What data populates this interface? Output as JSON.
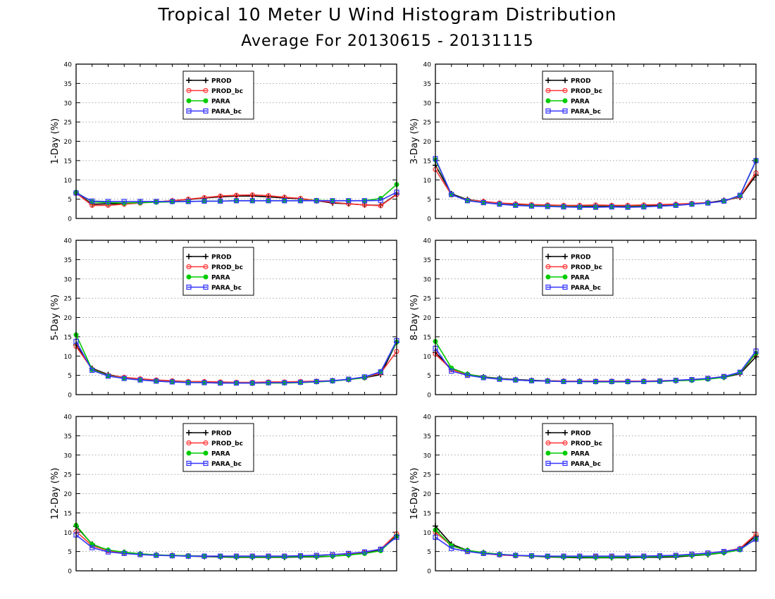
{
  "header": {
    "title": "Tropical 10 Meter U Wind Histogram Distribution",
    "subtitle": "Average For 20130615 - 20131115"
  },
  "colors": {
    "PROD": "#000000",
    "PROD_bc": "#ff3333",
    "PARA": "#00cc00",
    "PARA_bc": "#3333ff"
  },
  "chart_data": [
    {
      "type": "line",
      "ylabel": "1-Day (%)",
      "ylim": [
        0,
        40
      ],
      "yticks": [
        0,
        5,
        10,
        15,
        20,
        25,
        30,
        35,
        40
      ],
      "grid": true,
      "legend": "top-left",
      "series": [
        {
          "name": "PROD",
          "values": [
            6.6,
            3.7,
            3.8,
            3.8,
            4.1,
            4.3,
            4.6,
            4.9,
            5.3,
            5.6,
            5.8,
            5.8,
            5.6,
            5.3,
            5.1,
            4.6,
            4.0,
            3.8,
            3.5,
            3.4,
            6.3
          ]
        },
        {
          "name": "PROD_bc",
          "values": [
            6.6,
            3.4,
            3.4,
            3.7,
            4.0,
            4.3,
            4.6,
            5.0,
            5.4,
            5.8,
            6.0,
            6.1,
            5.9,
            5.5,
            5.2,
            4.6,
            4.2,
            3.8,
            3.5,
            3.3,
            6.2
          ]
        },
        {
          "name": "PARA",
          "values": [
            6.8,
            4.3,
            4.1,
            4.0,
            4.1,
            4.2,
            4.3,
            4.4,
            4.5,
            4.5,
            4.6,
            4.6,
            4.6,
            4.6,
            4.6,
            4.7,
            4.6,
            4.6,
            4.6,
            5.2,
            8.8
          ]
        },
        {
          "name": "PARA_bc",
          "values": [
            6.6,
            4.5,
            4.4,
            4.4,
            4.4,
            4.4,
            4.4,
            4.4,
            4.5,
            4.5,
            4.6,
            4.6,
            4.6,
            4.6,
            4.6,
            4.6,
            4.6,
            4.6,
            4.6,
            4.7,
            6.8
          ]
        }
      ]
    },
    {
      "type": "line",
      "ylabel": "3-Day (%)",
      "ylim": [
        0,
        40
      ],
      "yticks": [
        0,
        5,
        10,
        15,
        20,
        25,
        30,
        35,
        40
      ],
      "grid": true,
      "legend": "top-left",
      "series": [
        {
          "name": "PROD",
          "values": [
            13.8,
            6.4,
            4.9,
            4.4,
            3.9,
            3.6,
            3.4,
            3.3,
            3.2,
            3.2,
            3.2,
            3.2,
            3.2,
            3.3,
            3.4,
            3.6,
            3.8,
            4.1,
            4.7,
            5.5,
            11.2
          ]
        },
        {
          "name": "PROD_bc",
          "values": [
            12.7,
            6.1,
            4.8,
            4.4,
            4.0,
            3.8,
            3.6,
            3.5,
            3.4,
            3.4,
            3.5,
            3.4,
            3.4,
            3.5,
            3.6,
            3.7,
            3.9,
            4.1,
            4.5,
            5.7,
            11.8
          ]
        },
        {
          "name": "PARA",
          "values": [
            15.2,
            6.2,
            4.7,
            4.1,
            3.7,
            3.4,
            3.3,
            3.2,
            3.1,
            3.0,
            3.0,
            3.0,
            3.0,
            3.1,
            3.2,
            3.4,
            3.7,
            4.0,
            4.5,
            5.9,
            14.9
          ]
        },
        {
          "name": "PARA_bc",
          "values": [
            15.5,
            6.2,
            4.6,
            4.1,
            3.7,
            3.4,
            3.2,
            3.1,
            3.0,
            2.9,
            2.9,
            3.0,
            2.9,
            3.0,
            3.2,
            3.4,
            3.7,
            4.0,
            4.5,
            6.0,
            15.0
          ]
        }
      ]
    },
    {
      "type": "line",
      "ylabel": "5-Day (%)",
      "ylim": [
        0,
        40
      ],
      "yticks": [
        0,
        5,
        10,
        15,
        20,
        25,
        30,
        35,
        40
      ],
      "grid": true,
      "legend": "top-left",
      "series": [
        {
          "name": "PROD",
          "values": [
            12.9,
            6.8,
            5.2,
            4.4,
            4.0,
            3.7,
            3.5,
            3.3,
            3.2,
            3.1,
            3.1,
            3.0,
            3.1,
            3.1,
            3.2,
            3.4,
            3.6,
            3.9,
            4.4,
            5.2,
            13.6
          ]
        },
        {
          "name": "PROD_bc",
          "values": [
            12.5,
            6.6,
            5.0,
            4.5,
            4.1,
            3.8,
            3.6,
            3.4,
            3.4,
            3.3,
            3.2,
            3.2,
            3.3,
            3.3,
            3.4,
            3.5,
            3.6,
            3.9,
            4.4,
            5.6,
            11.2
          ]
        },
        {
          "name": "PARA",
          "values": [
            15.5,
            6.5,
            4.9,
            4.2,
            3.8,
            3.5,
            3.3,
            3.2,
            3.1,
            3.0,
            3.0,
            3.0,
            3.0,
            3.0,
            3.1,
            3.3,
            3.5,
            3.9,
            4.4,
            6.0,
            13.6
          ]
        },
        {
          "name": "PARA_bc",
          "values": [
            13.8,
            6.3,
            4.8,
            4.2,
            3.8,
            3.5,
            3.3,
            3.1,
            3.1,
            3.0,
            3.0,
            3.0,
            3.1,
            3.1,
            3.2,
            3.4,
            3.6,
            4.0,
            4.6,
            5.9,
            14.0
          ]
        }
      ]
    },
    {
      "type": "line",
      "ylabel": "8-Day (%)",
      "ylim": [
        0,
        40
      ],
      "yticks": [
        0,
        5,
        10,
        15,
        20,
        25,
        30,
        35,
        40
      ],
      "grid": true,
      "legend": "top-left",
      "series": [
        {
          "name": "PROD",
          "values": [
            11.0,
            6.6,
            5.3,
            4.6,
            4.2,
            3.9,
            3.7,
            3.6,
            3.5,
            3.5,
            3.4,
            3.4,
            3.4,
            3.5,
            3.5,
            3.6,
            3.8,
            4.1,
            4.5,
            5.4,
            9.8
          ]
        },
        {
          "name": "PROD_bc",
          "values": [
            10.5,
            6.5,
            5.2,
            4.5,
            4.1,
            3.8,
            3.6,
            3.6,
            3.5,
            3.5,
            3.5,
            3.5,
            3.5,
            3.5,
            3.6,
            3.7,
            3.9,
            4.2,
            4.7,
            5.6,
            10.6
          ]
        },
        {
          "name": "PARA",
          "values": [
            13.8,
            6.9,
            5.3,
            4.5,
            4.1,
            3.8,
            3.6,
            3.5,
            3.4,
            3.4,
            3.3,
            3.3,
            3.3,
            3.4,
            3.4,
            3.6,
            3.7,
            4.0,
            4.5,
            5.7,
            10.7
          ]
        },
        {
          "name": "PARA_bc",
          "values": [
            12.0,
            6.1,
            5.0,
            4.4,
            4.0,
            3.8,
            3.6,
            3.5,
            3.4,
            3.4,
            3.4,
            3.4,
            3.4,
            3.4,
            3.5,
            3.7,
            3.9,
            4.2,
            4.7,
            5.8,
            11.3
          ]
        }
      ]
    },
    {
      "type": "line",
      "ylabel": "12-Day (%)",
      "ylim": [
        0,
        40
      ],
      "yticks": [
        0,
        5,
        10,
        15,
        20,
        25,
        30,
        35,
        40
      ],
      "grid": true,
      "legend": "top-left",
      "series": [
        {
          "name": "PROD",
          "values": [
            11.5,
            6.9,
            5.3,
            4.8,
            4.4,
            4.1,
            4.0,
            3.8,
            3.7,
            3.6,
            3.5,
            3.5,
            3.5,
            3.5,
            3.6,
            3.6,
            3.8,
            4.1,
            4.6,
            5.4,
            9.2
          ]
        },
        {
          "name": "PROD_bc",
          "values": [
            10.2,
            6.5,
            5.2,
            4.7,
            4.3,
            4.1,
            4.0,
            3.9,
            3.8,
            3.8,
            3.8,
            3.8,
            3.8,
            3.8,
            3.9,
            4.0,
            4.2,
            4.4,
            4.8,
            5.6,
            9.6
          ]
        },
        {
          "name": "PARA",
          "values": [
            11.8,
            6.8,
            5.4,
            4.8,
            4.4,
            4.1,
            4.0,
            3.9,
            3.8,
            3.7,
            3.6,
            3.6,
            3.6,
            3.6,
            3.7,
            3.7,
            3.8,
            4.1,
            4.5,
            5.2,
            9.0
          ]
        },
        {
          "name": "PARA_bc",
          "values": [
            9.3,
            6.0,
            4.9,
            4.5,
            4.2,
            4.0,
            3.9,
            3.8,
            3.8,
            3.8,
            3.8,
            3.8,
            3.8,
            3.8,
            3.9,
            4.0,
            4.2,
            4.5,
            4.9,
            5.6,
            8.7
          ]
        }
      ]
    },
    {
      "type": "line",
      "ylabel": "16-Day (%)",
      "ylim": [
        0,
        40
      ],
      "yticks": [
        0,
        5,
        10,
        15,
        20,
        25,
        30,
        35,
        40
      ],
      "grid": true,
      "legend": "top-left",
      "series": [
        {
          "name": "PROD",
          "values": [
            11.6,
            6.9,
            5.3,
            4.7,
            4.3,
            4.0,
            3.8,
            3.6,
            3.5,
            3.4,
            3.4,
            3.4,
            3.4,
            3.5,
            3.5,
            3.6,
            3.9,
            4.2,
            4.7,
            5.6,
            9.0
          ]
        },
        {
          "name": "PROD_bc",
          "values": [
            10.0,
            6.5,
            5.2,
            4.5,
            4.1,
            3.9,
            3.8,
            3.7,
            3.7,
            3.7,
            3.7,
            3.7,
            3.7,
            3.8,
            3.9,
            4.0,
            4.3,
            4.6,
            5.0,
            5.8,
            9.5
          ]
        },
        {
          "name": "PARA",
          "values": [
            10.6,
            6.5,
            5.3,
            4.7,
            4.3,
            4.0,
            3.8,
            3.7,
            3.6,
            3.6,
            3.5,
            3.5,
            3.6,
            3.6,
            3.7,
            3.8,
            4.0,
            4.3,
            4.7,
            5.4,
            8.4
          ]
        },
        {
          "name": "PARA_bc",
          "values": [
            8.7,
            5.8,
            5.0,
            4.5,
            4.2,
            4.0,
            3.9,
            3.8,
            3.8,
            3.8,
            3.8,
            3.8,
            3.8,
            3.8,
            3.9,
            4.0,
            4.3,
            4.6,
            5.0,
            5.6,
            8.2
          ]
        }
      ]
    }
  ]
}
